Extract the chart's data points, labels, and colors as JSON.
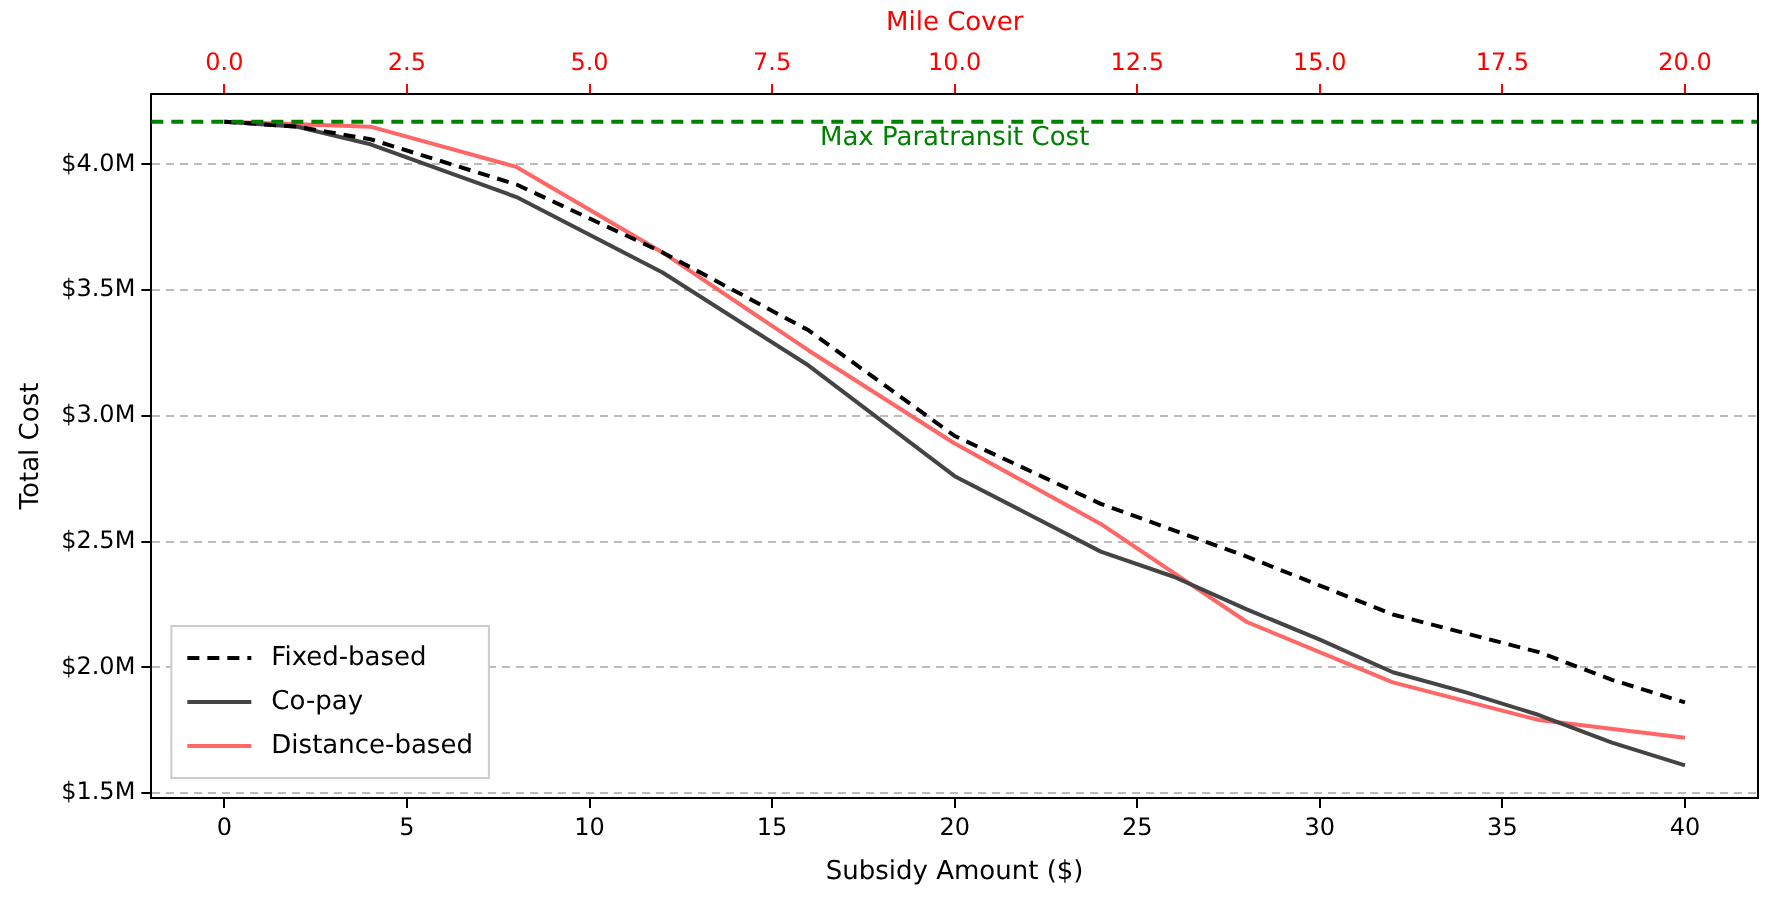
{
  "chart_data": {
    "type": "line",
    "xlabel": "Subsidy Amount ($)",
    "ylabel": "Total Cost",
    "x2label": "Mile Cover",
    "xlim": [
      -2,
      42
    ],
    "xticks": [
      0,
      5,
      10,
      15,
      20,
      25,
      30,
      35,
      40
    ],
    "x2lim": [
      -1,
      21
    ],
    "x2ticks": [
      {
        "value": 0,
        "label": "0.0"
      },
      {
        "value": 2.5,
        "label": "2.5"
      },
      {
        "value": 5,
        "label": "5.0"
      },
      {
        "value": 7.5,
        "label": "7.5"
      },
      {
        "value": 10,
        "label": "10.0"
      },
      {
        "value": 12.5,
        "label": "12.5"
      },
      {
        "value": 15,
        "label": "15.0"
      },
      {
        "value": 17.5,
        "label": "17.5"
      },
      {
        "value": 20,
        "label": "20.0"
      }
    ],
    "ylim": [
      1.48,
      4.28
    ],
    "yticks": [
      {
        "value": 1.5,
        "label": "$1.5M"
      },
      {
        "value": 2,
        "label": "$2.0M"
      },
      {
        "value": 2.5,
        "label": "$2.5M"
      },
      {
        "value": 3,
        "label": "$3.0M"
      },
      {
        "value": 3.5,
        "label": "$3.5M"
      },
      {
        "value": 4,
        "label": "$4.0M"
      }
    ],
    "grid": "y",
    "legend": "bottom left",
    "marker": "none",
    "series": [
      {
        "name": "Fixed-based",
        "color": "#000000",
        "line_style": "dashed",
        "x": [
          0,
          2,
          4,
          8,
          12,
          16,
          20,
          24,
          28,
          32,
          36,
          38,
          40
        ],
        "values": [
          4.17,
          4.15,
          4.1,
          3.92,
          3.65,
          3.34,
          2.92,
          2.65,
          2.44,
          2.21,
          2.06,
          1.95,
          1.86
        ]
      },
      {
        "name": "Co-pay",
        "color": "#444444",
        "line_style": "solid",
        "x": [
          0,
          2,
          4,
          8,
          12,
          16,
          20,
          24,
          26,
          28,
          30,
          32,
          34,
          36,
          38,
          40
        ],
        "values": [
          4.17,
          4.15,
          4.08,
          3.87,
          3.57,
          3.2,
          2.76,
          2.46,
          2.36,
          2.23,
          2.11,
          1.98,
          1.9,
          1.81,
          1.7,
          1.61
        ]
      },
      {
        "name": "Distance-based",
        "color": "#ff6666",
        "line_style": "solid",
        "x": [
          0,
          2,
          4,
          8,
          12,
          16,
          20,
          24,
          28,
          32,
          36,
          40
        ],
        "values": [
          4.17,
          4.16,
          4.15,
          3.99,
          3.65,
          3.26,
          2.89,
          2.57,
          2.18,
          1.94,
          1.79,
          1.72
        ]
      }
    ],
    "ref_lines": [
      {
        "axis": "y",
        "value": 4.17,
        "label": "Max Paratransit Cost",
        "color": "#008000",
        "line_style": "dashed"
      }
    ]
  }
}
